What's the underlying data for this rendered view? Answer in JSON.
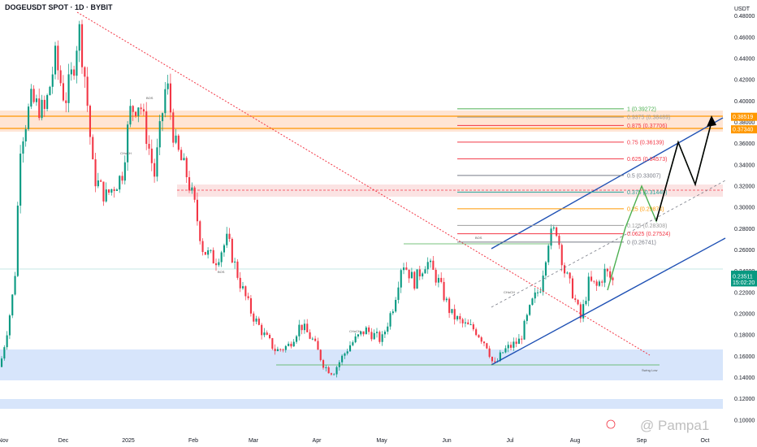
{
  "header": {
    "title": "DOGEUSDT SPOT · 1D · BYBIT",
    "currency": "USDT"
  },
  "chart_data": {
    "type": "candlestick",
    "symbol": "DOGEUSDT",
    "exchange": "BYBIT",
    "interval": "1D",
    "y_axis": {
      "min": 0.09,
      "max": 0.495,
      "ticks": [
        "0.48000",
        "0.46000",
        "0.44000",
        "0.42000",
        "0.40000",
        "0.38000",
        "0.36000",
        "0.34000",
        "0.32000",
        "0.30000",
        "0.28000",
        "0.26000",
        "0.24000",
        "0.22000",
        "0.20000",
        "0.18000",
        "0.16000",
        "0.14000",
        "0.12000",
        "0.10000"
      ]
    },
    "x_axis": {
      "labels": [
        "Nov",
        "Dec",
        "2025",
        "Feb",
        "Mar",
        "Apr",
        "May",
        "Jun",
        "Jul",
        "Aug",
        "Sep",
        "Oct"
      ]
    },
    "fib_levels": [
      {
        "label": "1 (0.39272)",
        "value": 0.39272,
        "color": "#4caf50"
      },
      {
        "label": "0.9375 (0.38489)",
        "value": 0.38489,
        "color": "#9e9e9e"
      },
      {
        "label": "0.875 (0.37706)",
        "value": 0.37706,
        "color": "#f23645"
      },
      {
        "label": "0.75 (0.36139)",
        "value": 0.36139,
        "color": "#f23645"
      },
      {
        "label": "0.625 (0.34573)",
        "value": 0.34573,
        "color": "#f23645"
      },
      {
        "label": "0.5 (0.33007)",
        "value": 0.33007,
        "color": "#787b86"
      },
      {
        "label": "0.375 (0.31440)",
        "value": 0.3144,
        "color": "#26a69a"
      },
      {
        "label": "0.25 (0.29874)",
        "value": 0.29874,
        "color": "#ff9800"
      },
      {
        "label": "0.125 (0.28308)",
        "value": 0.28308,
        "color": "#9e9e9e"
      },
      {
        "label": "0.0625 (0.27524)",
        "value": 0.27524,
        "color": "#f23645"
      },
      {
        "label": "0 (0.26741)",
        "value": 0.26741,
        "color": "#787b86"
      }
    ],
    "price_labels": [
      {
        "text": "0.38519",
        "value": 0.38519,
        "color": "#ff9800"
      },
      {
        "text": "0.37340",
        "value": 0.3734,
        "color": "#ff9800"
      },
      {
        "text": "DOGEUSDT",
        "value": 0.2367,
        "color": "#089981"
      },
      {
        "text": "0.23511",
        "value": 0.23511,
        "color": "#089981"
      },
      {
        "text": "15:02:20",
        "value": 0.2295,
        "color": "#089981"
      }
    ],
    "annotations": [
      "BOS",
      "CHoCH",
      "Swing Low"
    ]
  },
  "watermark": {
    "text": "@ Pampa1"
  }
}
